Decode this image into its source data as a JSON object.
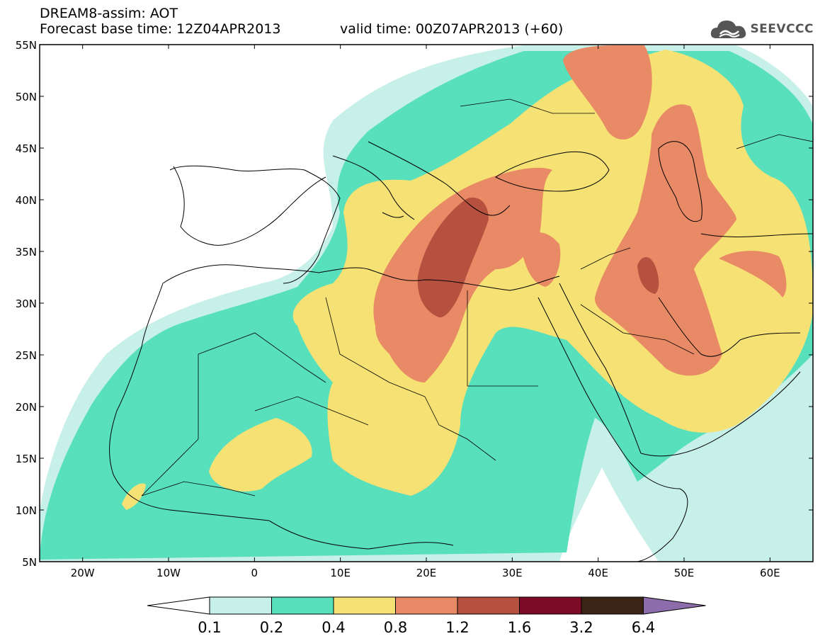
{
  "header": {
    "model": "DREAM8-assim: AOT",
    "base_time": "Forecast base time: 12Z04APR2013",
    "valid_time": "valid time: 00Z07APR2013 (+60)",
    "logo_text": "SEEVCCC",
    "logo_icon": "cloud-icon"
  },
  "map": {
    "lat_labels": [
      "55N",
      "50N",
      "45N",
      "40N",
      "35N",
      "30N",
      "25N",
      "20N",
      "15N",
      "10N",
      "5N"
    ],
    "lon_labels": [
      "20W",
      "10W",
      "0",
      "10E",
      "20E",
      "30E",
      "40E",
      "50E",
      "60E"
    ]
  },
  "legend": {
    "labels": [
      "0.1",
      "0.2",
      "0.4",
      "0.8",
      "1.2",
      "1.6",
      "3.2",
      "6.4"
    ],
    "colors": [
      "#ffffff",
      "#c6f0e8",
      "#58dfbc",
      "#f6e274",
      "#e98a66",
      "#b5513e",
      "#7d0b26",
      "#3c2417",
      "#8d6cab"
    ]
  }
}
